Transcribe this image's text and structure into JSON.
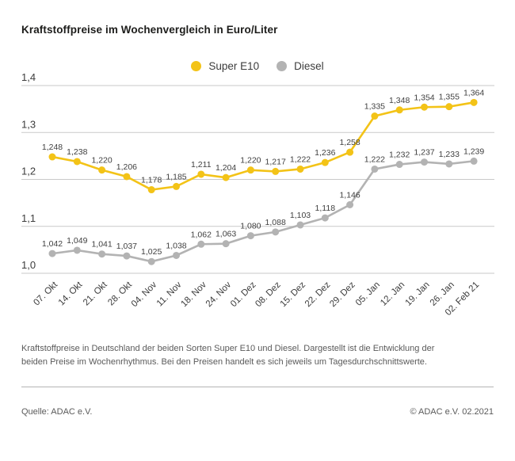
{
  "title": "Kraftstoffpreise im Wochenvergleich in Euro/Liter",
  "chart_data": {
    "type": "line",
    "title": "Kraftstoffpreise im Wochenvergleich in Euro/Liter",
    "x": [
      "07. Okt",
      "14. Okt",
      "21. Okt",
      "28. Okt",
      "04. Nov",
      "11. Nov",
      "18. Nov",
      "24. Nov",
      "01. Dez",
      "08. Dez",
      "15. Dez",
      "22. Dez",
      "29. Dez",
      "05. Jan",
      "12. Jan",
      "19. Jan",
      "26. Jan",
      "02. Feb 21"
    ],
    "series": [
      {
        "name": "Super E10",
        "color": "#f3c317",
        "values": [
          1.248,
          1.238,
          1.22,
          1.206,
          1.178,
          1.185,
          1.211,
          1.204,
          1.22,
          1.217,
          1.222,
          1.236,
          1.258,
          1.335,
          1.348,
          1.354,
          1.355,
          1.364
        ]
      },
      {
        "name": "Diesel",
        "color": "#b3b3b3",
        "values": [
          1.042,
          1.049,
          1.041,
          1.037,
          1.025,
          1.038,
          1.062,
          1.063,
          1.08,
          1.088,
          1.103,
          1.118,
          1.146,
          1.222,
          1.232,
          1.237,
          1.233,
          1.239
        ]
      }
    ],
    "ylim": [
      1.0,
      1.4
    ],
    "yticks": [
      "1,0",
      "1,1",
      "1,2",
      "1,3",
      "1,4"
    ],
    "ylabel": "",
    "xlabel": "",
    "grid": true,
    "legend_position": "top-center",
    "value_labels": "comma-3-decimals",
    "colors": {
      "grid": "#c9c9c9",
      "axis_text": "#3c3c3c",
      "value_label_text": "#3f3f3f"
    }
  },
  "description": "Kraftstoffpreise in Deutschland der beiden Sorten Super E10 und Diesel. Dargestellt ist die Entwicklung der beiden Preise im Wochenrhythmus. Bei den Preisen handelt es sich jeweils um Tagesdurchschnittswerte.",
  "footer": {
    "source": "Quelle: ADAC e.V.",
    "copyright": "© ADAC e.V. 02.2021"
  }
}
